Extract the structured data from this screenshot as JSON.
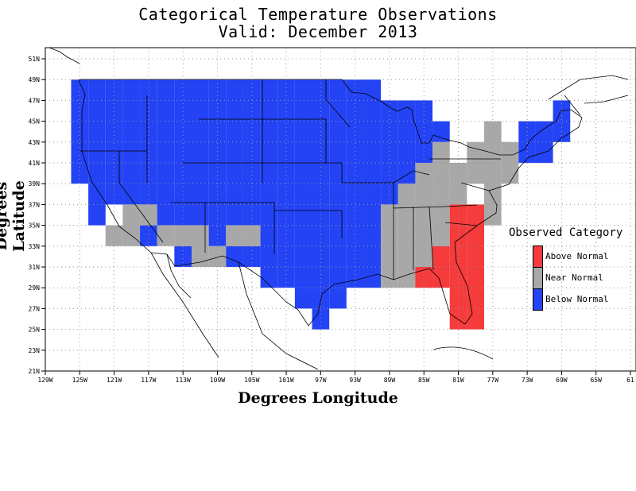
{
  "title_line1": "Categorical Temperature Observations",
  "title_line2": "Valid: December 2013",
  "xlabel": "Degrees Longitude",
  "ylabel": "Degrees Latitude",
  "legend": {
    "title": "Observed Category",
    "items": [
      {
        "key": "above",
        "label": "Above Normal",
        "color": "#f53b3b"
      },
      {
        "key": "near",
        "label": "Near Normal",
        "color": "#a8a8a8"
      },
      {
        "key": "below",
        "label": "Below Normal",
        "color": "#2343f5"
      }
    ]
  },
  "x_ticks": [
    "129W",
    "125W",
    "121W",
    "117W",
    "113W",
    "109W",
    "105W",
    "101W",
    "97W",
    "93W",
    "89W",
    "85W",
    "81W",
    "77W",
    "73W",
    "69W",
    "65W",
    "61"
  ],
  "y_ticks": [
    "51N",
    "49N",
    "47N",
    "45N",
    "43N",
    "41N",
    "39N",
    "37N",
    "35N",
    "33N",
    "31N",
    "29N",
    "27N",
    "25N",
    "23N",
    "21N"
  ],
  "grid": true,
  "cells": [
    {
      "lon": -125,
      "lat": [
        39,
        49
      ],
      "cat": "below"
    },
    {
      "lon": -123,
      "lat": [
        35,
        49
      ],
      "cat": "below"
    },
    {
      "lon": -121,
      "lat": [
        37,
        49
      ],
      "cat": "below"
    },
    {
      "lon": -121,
      "lat": [
        33,
        35
      ],
      "cat": "near"
    },
    {
      "lon": -119,
      "lat": [
        37,
        49
      ],
      "cat": "below"
    },
    {
      "lon": -119,
      "lat": [
        33,
        37
      ],
      "cat": "near"
    },
    {
      "lon": -117,
      "lat": [
        37,
        49
      ],
      "cat": "below"
    },
    {
      "lon": -117,
      "lat": [
        33,
        35
      ],
      "cat": "below"
    },
    {
      "lon": -117,
      "lat": [
        35,
        37
      ],
      "cat": "near"
    },
    {
      "lon": -115,
      "lat": [
        35,
        49
      ],
      "cat": "below"
    },
    {
      "lon": -115,
      "lat": [
        33,
        35
      ],
      "cat": "near"
    },
    {
      "lon": -113,
      "lat": [
        35,
        49
      ],
      "cat": "below"
    },
    {
      "lon": -113,
      "lat": [
        31,
        33
      ],
      "cat": "below"
    },
    {
      "lon": -113,
      "lat": [
        33,
        35
      ],
      "cat": "near"
    },
    {
      "lon": -111,
      "lat": [
        35,
        49
      ],
      "cat": "below"
    },
    {
      "lon": -111,
      "lat": [
        31,
        35
      ],
      "cat": "near"
    },
    {
      "lon": -109,
      "lat": [
        33,
        49
      ],
      "cat": "below"
    },
    {
      "lon": -109,
      "lat": [
        31,
        33
      ],
      "cat": "near"
    },
    {
      "lon": -107,
      "lat": [
        31,
        33
      ],
      "cat": "below"
    },
    {
      "lon": -107,
      "lat": [
        35,
        49
      ],
      "cat": "below"
    },
    {
      "lon": -107,
      "lat": [
        33,
        35
      ],
      "cat": "near"
    },
    {
      "lon": -105,
      "lat": [
        31,
        33
      ],
      "cat": "below"
    },
    {
      "lon": -105,
      "lat": [
        35,
        49
      ],
      "cat": "below"
    },
    {
      "lon": -105,
      "lat": [
        33,
        35
      ],
      "cat": "near"
    },
    {
      "lon": -103,
      "lat": [
        29,
        49
      ],
      "cat": "below"
    },
    {
      "lon": -101,
      "lat": [
        29,
        49
      ],
      "cat": "below"
    },
    {
      "lon": -99,
      "lat": [
        27,
        49
      ],
      "cat": "below"
    },
    {
      "lon": -97,
      "lat": [
        25,
        49
      ],
      "cat": "below"
    },
    {
      "lon": -95,
      "lat": [
        27,
        49
      ],
      "cat": "below"
    },
    {
      "lon": -93,
      "lat": [
        29,
        49
      ],
      "cat": "below"
    },
    {
      "lon": -91,
      "lat": [
        29,
        49
      ],
      "cat": "below"
    },
    {
      "lon": -89,
      "lat": [
        37,
        47
      ],
      "cat": "below"
    },
    {
      "lon": -89,
      "lat": [
        29,
        37
      ],
      "cat": "near"
    },
    {
      "lon": -87,
      "lat": [
        39,
        47
      ],
      "cat": "below"
    },
    {
      "lon": -87,
      "lat": [
        29,
        39
      ],
      "cat": "near"
    },
    {
      "lon": -85,
      "lat": [
        41,
        47
      ],
      "cat": "below"
    },
    {
      "lon": -85,
      "lat": [
        29,
        41
      ],
      "cat": "near"
    },
    {
      "lon": -85,
      "lat": [
        29,
        31
      ],
      "cat": "above"
    },
    {
      "lon": -83,
      "lat": [
        43,
        45
      ],
      "cat": "below"
    },
    {
      "lon": -83,
      "lat": [
        33,
        43
      ],
      "cat": "near"
    },
    {
      "lon": -83,
      "lat": [
        29,
        33
      ],
      "cat": "above"
    },
    {
      "lon": -81,
      "lat": [
        39,
        41
      ],
      "cat": "near"
    },
    {
      "lon": -81,
      "lat": [
        37,
        39
      ],
      "cat": "near"
    },
    {
      "lon": -81,
      "lat": [
        25,
        37
      ],
      "cat": "above"
    },
    {
      "lon": -79,
      "lat": [
        25,
        37
      ],
      "cat": "above"
    },
    {
      "lon": -79,
      "lat": [
        39,
        43
      ],
      "cat": "near"
    },
    {
      "lon": -77,
      "lat": [
        35,
        45
      ],
      "cat": "near"
    },
    {
      "lon": -75,
      "lat": [
        39,
        43
      ],
      "cat": "near"
    },
    {
      "lon": -73,
      "lat": [
        41,
        45
      ],
      "cat": "below"
    },
    {
      "lon": -71,
      "lat": [
        41,
        45
      ],
      "cat": "below"
    },
    {
      "lon": -69,
      "lat": [
        43,
        47
      ],
      "cat": "below"
    }
  ]
}
